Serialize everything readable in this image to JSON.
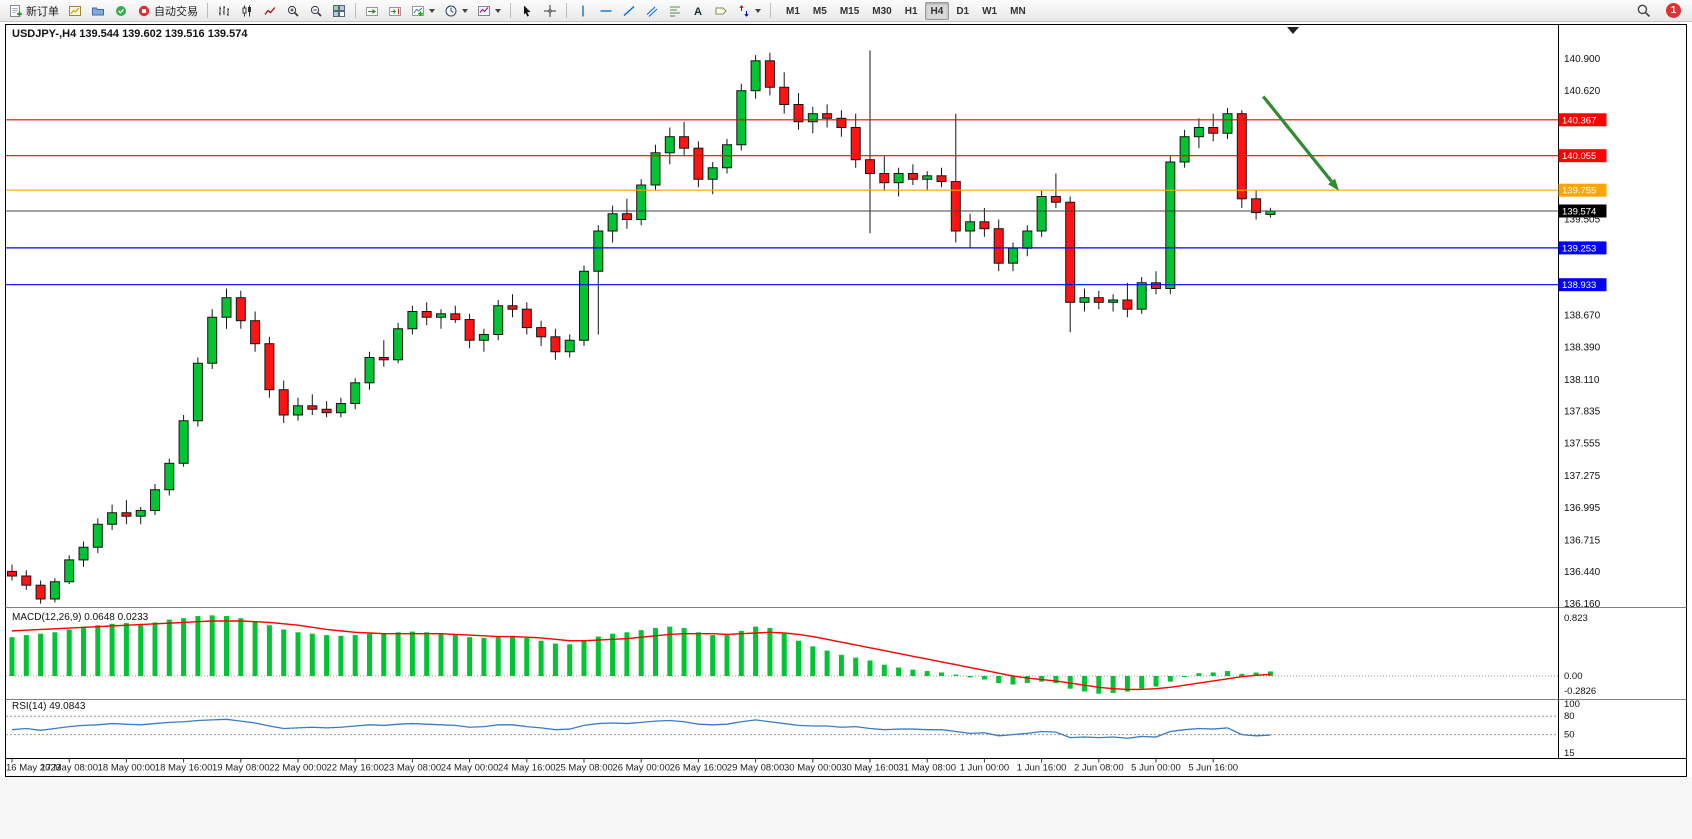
{
  "toolbar": {
    "new_order_label": "新订单",
    "auto_trading_label": "自动交易",
    "timeframes": [
      "M1",
      "M5",
      "M15",
      "M30",
      "H1",
      "H4",
      "D1",
      "W1",
      "MN"
    ],
    "active_timeframe": "H4",
    "notification_count": "1"
  },
  "chart": {
    "symbol": "USDJPY-",
    "timeframe": "H4",
    "ohlc": {
      "open": "139.544",
      "high": "139.602",
      "low": "139.516",
      "close": "139.574"
    }
  },
  "chart_data": [
    {
      "type": "candlestick",
      "name": "main",
      "title": "USDJPY-,H4 139.544 139.602 139.516 139.574",
      "y_axis_labels": [
        "140.900",
        "140.620",
        "139.505",
        "138.670",
        "138.390",
        "138.110",
        "137.835",
        "137.555",
        "137.275",
        "136.995",
        "136.715",
        "136.440",
        "136.160"
      ],
      "x_labels": [
        "16 May 2023",
        "17 May 08:00",
        "18 May 00:00",
        "18 May 16:00",
        "19 May 08:00",
        "22 May 00:00",
        "22 May 16:00",
        "23 May 08:00",
        "24 May 00:00",
        "24 May 16:00",
        "25 May 08:00",
        "26 May 00:00",
        "26 May 16:00",
        "29 May 08:00",
        "30 May 00:00",
        "30 May 16:00",
        "31 May 08:00",
        "1 Jun 00:00",
        "1 Jun 16:00",
        "2 Jun 08:00",
        "5 Jun 00:00",
        "5 Jun 16:00"
      ],
      "y_range": [
        136.1,
        141.2
      ],
      "candles": [
        [
          136.44,
          136.5,
          136.36,
          136.4
        ],
        [
          136.4,
          136.45,
          136.28,
          136.32
        ],
        [
          136.32,
          136.36,
          136.16,
          136.2
        ],
        [
          136.2,
          136.38,
          136.17,
          136.35
        ],
        [
          136.35,
          136.58,
          136.33,
          136.54
        ],
        [
          136.54,
          136.7,
          136.48,
          136.65
        ],
        [
          136.65,
          136.9,
          136.6,
          136.85
        ],
        [
          136.85,
          137.02,
          136.8,
          136.95
        ],
        [
          136.95,
          137.06,
          136.85,
          136.92
        ],
        [
          136.92,
          137.0,
          136.85,
          136.97
        ],
        [
          136.97,
          137.2,
          136.93,
          137.15
        ],
        [
          137.15,
          137.42,
          137.1,
          137.38
        ],
        [
          137.38,
          137.8,
          137.35,
          137.75
        ],
        [
          137.75,
          138.3,
          137.7,
          138.25
        ],
        [
          138.25,
          138.72,
          138.2,
          138.65
        ],
        [
          138.65,
          138.9,
          138.55,
          138.82
        ],
        [
          138.82,
          138.88,
          138.55,
          138.62
        ],
        [
          138.62,
          138.7,
          138.35,
          138.42
        ],
        [
          138.42,
          138.48,
          137.95,
          138.02
        ],
        [
          138.02,
          138.1,
          137.73,
          137.8
        ],
        [
          137.8,
          137.95,
          137.75,
          137.88
        ],
        [
          137.88,
          137.98,
          137.8,
          137.85
        ],
        [
          137.85,
          137.92,
          137.78,
          137.82
        ],
        [
          137.82,
          137.95,
          137.78,
          137.9
        ],
        [
          137.9,
          138.12,
          137.85,
          138.08
        ],
        [
          138.08,
          138.35,
          138.02,
          138.3
        ],
        [
          138.3,
          138.45,
          138.22,
          138.28
        ],
        [
          138.28,
          138.6,
          138.25,
          138.55
        ],
        [
          138.55,
          138.75,
          138.5,
          138.7
        ],
        [
          138.7,
          138.78,
          138.58,
          138.65
        ],
        [
          138.65,
          138.72,
          138.55,
          138.68
        ],
        [
          138.68,
          138.75,
          138.6,
          138.63
        ],
        [
          138.63,
          138.68,
          138.38,
          138.45
        ],
        [
          138.45,
          138.55,
          138.35,
          138.5
        ],
        [
          138.5,
          138.8,
          138.45,
          138.75
        ],
        [
          138.75,
          138.85,
          138.65,
          138.72
        ],
        [
          138.72,
          138.78,
          138.5,
          138.56
        ],
        [
          138.56,
          138.62,
          138.4,
          138.48
        ],
        [
          138.48,
          138.55,
          138.28,
          138.35
        ],
        [
          138.35,
          138.5,
          138.3,
          138.45
        ],
        [
          138.45,
          139.1,
          138.4,
          139.05
        ],
        [
          139.05,
          139.45,
          138.5,
          139.4
        ],
        [
          139.4,
          139.62,
          139.3,
          139.55
        ],
        [
          139.55,
          139.68,
          139.42,
          139.5
        ],
        [
          139.5,
          139.85,
          139.45,
          139.8
        ],
        [
          139.8,
          140.15,
          139.75,
          140.08
        ],
        [
          140.08,
          140.3,
          139.98,
          140.22
        ],
        [
          140.22,
          140.35,
          140.05,
          140.12
        ],
        [
          140.12,
          140.18,
          139.78,
          139.85
        ],
        [
          139.85,
          140.0,
          139.72,
          139.95
        ],
        [
          139.95,
          140.2,
          139.9,
          140.15
        ],
        [
          140.15,
          140.68,
          140.1,
          140.62
        ],
        [
          140.62,
          140.93,
          140.55,
          140.88
        ],
        [
          140.88,
          140.95,
          140.58,
          140.65
        ],
        [
          140.65,
          140.78,
          140.42,
          140.5
        ],
        [
          140.5,
          140.6,
          140.28,
          140.35
        ],
        [
          140.35,
          140.48,
          140.25,
          140.42
        ],
        [
          140.42,
          140.5,
          140.3,
          140.38
        ],
        [
          140.38,
          140.45,
          140.22,
          140.3
        ],
        [
          140.3,
          140.42,
          139.95,
          140.02
        ],
        [
          140.02,
          140.97,
          139.38,
          139.9
        ],
        [
          139.9,
          140.05,
          139.75,
          139.82
        ],
        [
          139.82,
          139.95,
          139.7,
          139.9
        ],
        [
          139.9,
          139.98,
          139.8,
          139.85
        ],
        [
          139.85,
          139.92,
          139.75,
          139.88
        ],
        [
          139.88,
          139.95,
          139.78,
          139.83
        ],
        [
          139.83,
          140.42,
          139.3,
          139.4
        ],
        [
          139.4,
          139.55,
          139.25,
          139.48
        ],
        [
          139.48,
          139.6,
          139.35,
          139.42
        ],
        [
          139.42,
          139.5,
          139.05,
          139.12
        ],
        [
          139.12,
          139.3,
          139.05,
          139.25
        ],
        [
          139.25,
          139.45,
          139.18,
          139.4
        ],
        [
          139.4,
          139.75,
          139.35,
          139.7
        ],
        [
          139.7,
          139.9,
          139.6,
          139.65
        ],
        [
          139.65,
          139.7,
          138.52,
          138.78
        ],
        [
          138.78,
          138.9,
          138.7,
          138.82
        ],
        [
          138.82,
          138.88,
          138.72,
          138.78
        ],
        [
          138.78,
          138.85,
          138.7,
          138.8
        ],
        [
          138.8,
          138.95,
          138.65,
          138.72
        ],
        [
          138.72,
          139.0,
          138.68,
          138.95
        ],
        [
          138.95,
          139.05,
          138.85,
          138.9
        ],
        [
          138.9,
          140.05,
          138.85,
          140.0
        ],
        [
          140.0,
          140.28,
          139.95,
          140.22
        ],
        [
          140.22,
          140.38,
          140.12,
          140.3
        ],
        [
          140.3,
          140.42,
          140.18,
          140.25
        ],
        [
          140.25,
          140.47,
          140.2,
          140.42
        ],
        [
          140.42,
          140.45,
          139.6,
          139.68
        ],
        [
          139.68,
          139.75,
          139.5,
          139.56
        ],
        [
          139.544,
          139.602,
          139.516,
          139.574
        ]
      ],
      "levels": [
        {
          "price": 140.367,
          "label": "140.367",
          "color": "#FF0000"
        },
        {
          "price": 140.055,
          "label": "140.055",
          "color": "#FF0000"
        },
        {
          "price": 139.755,
          "label": "139.755",
          "color": "#FFA500"
        },
        {
          "price": 139.253,
          "label": "139.253",
          "color": "#0000FF"
        },
        {
          "price": 138.933,
          "label": "138.933",
          "color": "#0000FF"
        }
      ],
      "current_price": {
        "price": 139.574,
        "label": "139.574",
        "color": "#000000"
      },
      "arrow": {
        "from_bar": 87.5,
        "from_price": 140.57,
        "to_bar": 92.8,
        "to_price": 139.75,
        "color": "#2E8B2E"
      },
      "colors": {
        "up": "#00C432",
        "down": "#FF1414",
        "outline": "#151515",
        "background": "#FFFFFF"
      }
    },
    {
      "type": "bar",
      "name": "MACD",
      "title": "MACD(12,26,9) 0.0648 0.0233",
      "values": [
        0.55,
        0.58,
        0.6,
        0.62,
        0.66,
        0.7,
        0.72,
        0.74,
        0.75,
        0.74,
        0.76,
        0.8,
        0.82,
        0.85,
        0.86,
        0.85,
        0.82,
        0.78,
        0.72,
        0.66,
        0.62,
        0.6,
        0.58,
        0.57,
        0.58,
        0.6,
        0.6,
        0.62,
        0.63,
        0.62,
        0.6,
        0.58,
        0.55,
        0.54,
        0.56,
        0.57,
        0.54,
        0.5,
        0.46,
        0.45,
        0.5,
        0.56,
        0.6,
        0.62,
        0.65,
        0.68,
        0.7,
        0.68,
        0.62,
        0.58,
        0.58,
        0.64,
        0.7,
        0.68,
        0.6,
        0.5,
        0.42,
        0.36,
        0.3,
        0.26,
        0.22,
        0.16,
        0.12,
        0.09,
        0.07,
        0.05,
        0.02,
        -0.02,
        -0.05,
        -0.1,
        -0.12,
        -0.1,
        -0.08,
        -0.1,
        -0.18,
        -0.22,
        -0.25,
        -0.24,
        -0.22,
        -0.18,
        -0.15,
        -0.08,
        0.0,
        0.04,
        0.05,
        0.07,
        0.03,
        0.05,
        0.0648
      ],
      "signal": [
        0.64,
        0.65,
        0.66,
        0.67,
        0.68,
        0.69,
        0.7,
        0.71,
        0.72,
        0.73,
        0.74,
        0.75,
        0.76,
        0.77,
        0.78,
        0.78,
        0.78,
        0.77,
        0.76,
        0.74,
        0.72,
        0.69,
        0.66,
        0.64,
        0.62,
        0.61,
        0.6,
        0.6,
        0.6,
        0.6,
        0.6,
        0.59,
        0.58,
        0.57,
        0.56,
        0.56,
        0.55,
        0.54,
        0.52,
        0.5,
        0.5,
        0.51,
        0.52,
        0.53,
        0.55,
        0.57,
        0.59,
        0.6,
        0.6,
        0.6,
        0.59,
        0.6,
        0.61,
        0.62,
        0.61,
        0.59,
        0.56,
        0.52,
        0.48,
        0.44,
        0.4,
        0.36,
        0.32,
        0.28,
        0.24,
        0.2,
        0.16,
        0.12,
        0.08,
        0.04,
        0.0,
        -0.03,
        -0.05,
        -0.07,
        -0.1,
        -0.13,
        -0.16,
        -0.18,
        -0.19,
        -0.19,
        -0.18,
        -0.16,
        -0.13,
        -0.1,
        -0.07,
        -0.04,
        -0.01,
        0.01,
        0.0233
      ],
      "y_labels": [
        "0.823",
        "0.00",
        "-0.2826"
      ],
      "colors": {
        "histogram": "#00C432",
        "signal": "#FF0000"
      }
    },
    {
      "type": "line",
      "name": "RSI",
      "title": "RSI(14) 49.0843",
      "values": [
        58,
        60,
        57,
        60,
        63,
        65,
        66,
        68,
        67,
        66,
        68,
        70,
        71,
        73,
        74,
        75,
        72,
        69,
        64,
        60,
        61,
        62,
        61,
        62,
        64,
        66,
        65,
        67,
        68,
        67,
        66,
        65,
        62,
        63,
        66,
        66,
        63,
        61,
        58,
        59,
        65,
        68,
        69,
        68,
        70,
        72,
        73,
        71,
        67,
        66,
        67,
        71,
        74,
        71,
        68,
        65,
        64,
        64,
        62,
        63,
        60,
        58,
        59,
        59,
        58,
        58,
        55,
        52,
        53,
        48,
        50,
        52,
        55,
        54,
        45,
        46,
        45,
        46,
        44,
        47,
        46,
        55,
        58,
        60,
        59,
        61,
        50,
        48,
        49.0843
      ],
      "y_labels": [
        "100",
        "80",
        "50",
        "15"
      ],
      "levels": [
        80,
        50
      ],
      "colors": {
        "line": "#3A7BC8"
      }
    }
  ]
}
